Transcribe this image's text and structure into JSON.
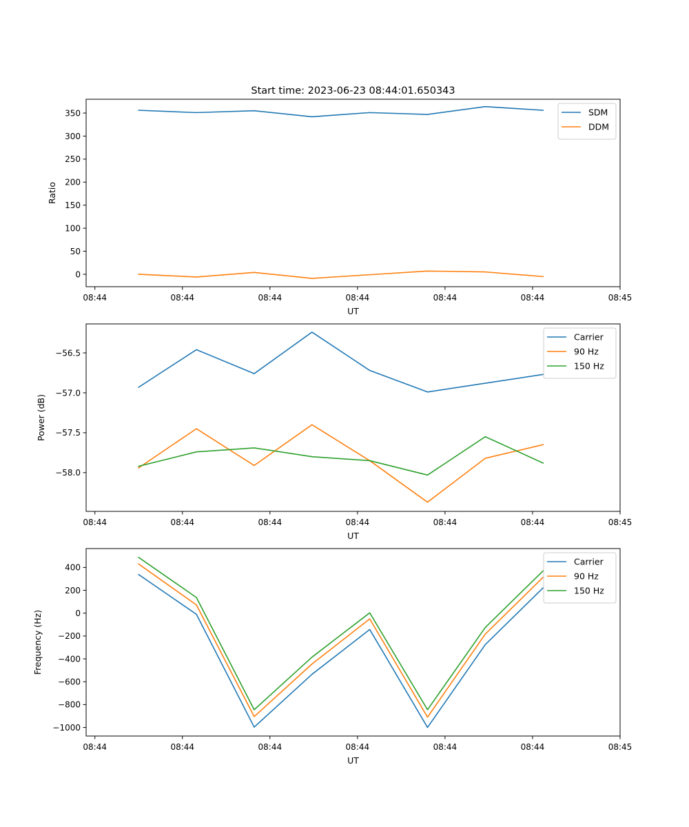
{
  "title": "Start time: 2023-06-23 08:44:01.650343",
  "chart_data": [
    {
      "type": "line",
      "title": "Start time: 2023-06-23 08:44:01.650343",
      "xlabel": "UT",
      "ylabel": "Ratio",
      "x_tick_labels": [
        "08:44",
        "08:44",
        "08:44",
        "08:44",
        "08:44",
        "08:44",
        "08:45"
      ],
      "x_ticks": [
        0,
        1,
        2,
        3,
        4,
        5,
        6
      ],
      "xlim": [
        -0.1,
        6.0
      ],
      "x": [
        0.5,
        1.16,
        1.82,
        2.48,
        3.14,
        3.8,
        4.46,
        5.12
      ],
      "ylim": [
        -27,
        380
      ],
      "y_ticks": [
        0,
        50,
        100,
        150,
        200,
        250,
        300,
        350
      ],
      "y_tick_labels": [
        "0",
        "50",
        "100",
        "150",
        "200",
        "250",
        "300",
        "350"
      ],
      "legend_position": "top-right",
      "series": [
        {
          "name": "SDM",
          "color": "#1f77b4",
          "values": [
            356,
            351,
            355,
            342,
            351,
            347,
            364,
            356
          ]
        },
        {
          "name": "DDM",
          "color": "#ff7f0e",
          "values": [
            0,
            -6,
            4,
            -9,
            -1,
            7,
            5,
            -5
          ]
        }
      ]
    },
    {
      "type": "line",
      "title": "",
      "xlabel": "UT",
      "ylabel": "Power (dB)",
      "x_tick_labels": [
        "08:44",
        "08:44",
        "08:44",
        "08:44",
        "08:44",
        "08:44",
        "08:45"
      ],
      "x_ticks": [
        0,
        1,
        2,
        3,
        4,
        5,
        6
      ],
      "xlim": [
        -0.1,
        6.0
      ],
      "x": [
        0.5,
        1.16,
        1.82,
        2.48,
        3.14,
        3.8,
        4.46,
        5.12
      ],
      "ylim": [
        -58.485,
        -56.137
      ],
      "y_ticks": [
        -58.0,
        -57.5,
        -57.0,
        -56.5
      ],
      "y_tick_labels": [
        "−58.0",
        "−57.5",
        "−57.0",
        "−56.5"
      ],
      "legend_position": "top-right",
      "series": [
        {
          "name": "Carrier",
          "color": "#1f77b4",
          "values": [
            -56.93,
            -56.46,
            -56.76,
            -56.24,
            -56.72,
            -56.99,
            -56.88,
            -56.77
          ]
        },
        {
          "name": "90 Hz",
          "color": "#ff7f0e",
          "values": [
            -57.94,
            -57.45,
            -57.91,
            -57.4,
            -57.85,
            -58.37,
            -57.82,
            -57.65
          ]
        },
        {
          "name": "150 Hz",
          "color": "#2ca02c",
          "values": [
            -57.92,
            -57.74,
            -57.69,
            -57.8,
            -57.85,
            -58.03,
            -57.55,
            -57.88
          ]
        }
      ]
    },
    {
      "type": "line",
      "title": "",
      "xlabel": "UT",
      "ylabel": "Frequency (Hz)",
      "x_tick_labels": [
        "08:44",
        "08:44",
        "08:44",
        "08:44",
        "08:44",
        "08:44",
        "08:45"
      ],
      "x_ticks": [
        0,
        1,
        2,
        3,
        4,
        5,
        6
      ],
      "xlim": [
        -0.1,
        6.0
      ],
      "x": [
        0.5,
        1.16,
        1.82,
        2.48,
        3.14,
        3.8,
        4.46,
        5.12
      ],
      "ylim": [
        -1075,
        565
      ],
      "y_ticks": [
        -1000,
        -800,
        -600,
        -400,
        -200,
        0,
        200,
        400
      ],
      "y_tick_labels": [
        "−1000",
        "−800",
        "−600",
        "−400",
        "−200",
        "0",
        "200",
        "400"
      ],
      "legend_position": "top-right",
      "series": [
        {
          "name": "Carrier",
          "color": "#1f77b4",
          "values": [
            338,
            -10,
            -997,
            -535,
            -143,
            -1000,
            -275,
            221
          ]
        },
        {
          "name": "90 Hz",
          "color": "#ff7f0e",
          "values": [
            430,
            72,
            -905,
            -445,
            -50,
            -910,
            -183,
            313
          ]
        },
        {
          "name": "150 Hz",
          "color": "#2ca02c",
          "values": [
            488,
            137,
            -845,
            -385,
            3,
            -845,
            -125,
            370
          ]
        }
      ]
    }
  ]
}
